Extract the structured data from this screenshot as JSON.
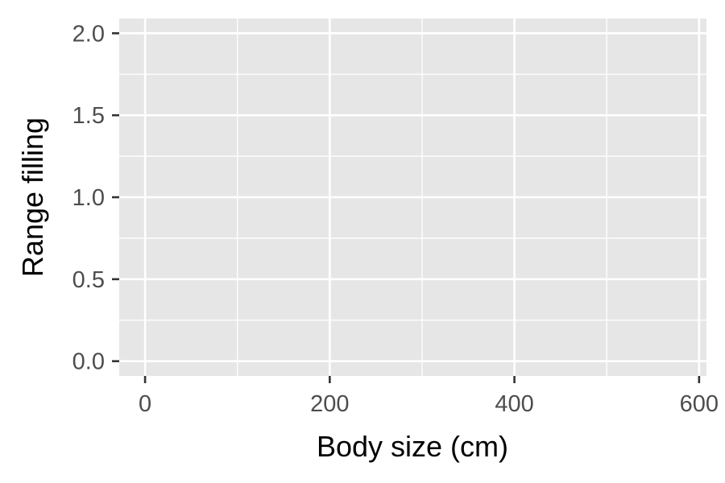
{
  "chart_data": {
    "type": "scatter",
    "title": "",
    "xlabel": "Body size (cm)",
    "ylabel": "Range filling",
    "xlim": [
      -28,
      608
    ],
    "ylim": [
      -0.09,
      2.09
    ],
    "x_ticks": [
      0,
      200,
      400,
      600
    ],
    "x_tick_labels": [
      "0",
      "200",
      "400",
      "600"
    ],
    "x_minor_ticks": [
      100,
      300,
      500
    ],
    "y_ticks": [
      0.0,
      0.5,
      1.0,
      1.5,
      2.0
    ],
    "y_tick_labels": [
      "0.0",
      "0.5",
      "1.0",
      "1.5",
      "2.0"
    ],
    "y_minor_ticks": [
      0.25,
      0.75,
      1.25,
      1.75
    ],
    "series": [
      {
        "x": [],
        "y": []
      }
    ],
    "grid": true,
    "legend": "none",
    "colors": {
      "panel_background": "#e6e6e6",
      "grid": "#ffffff",
      "tick": "#333333",
      "tick_label": "#4d4d4d",
      "axis_title": "#000000"
    }
  }
}
